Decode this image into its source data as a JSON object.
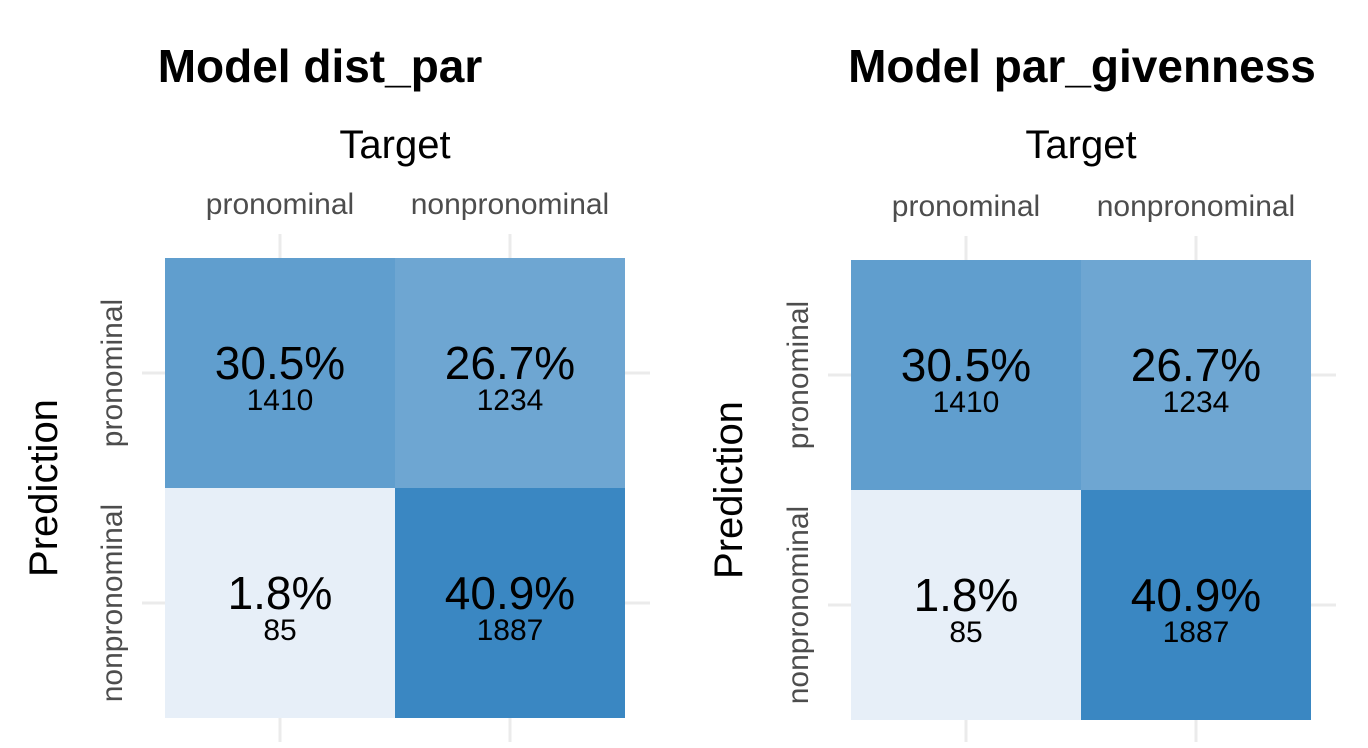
{
  "colors": {
    "background": "#ffffff",
    "grid": "#ebebeb",
    "fill_low": "#f0f4fb",
    "fill_high": "#3a87c2"
  },
  "chart_data": [
    {
      "type": "heatmap",
      "title": "Model dist_par",
      "xlabel": "Target",
      "ylabel": "Prediction",
      "x_categories": [
        "pronominal",
        "nonpronominal"
      ],
      "y_categories": [
        "pronominal",
        "nonpronominal"
      ],
      "cells": [
        {
          "target": "pronominal",
          "prediction": "pronominal",
          "percent": "30.5%",
          "count": "1410",
          "value": 1410
        },
        {
          "target": "nonpronominal",
          "prediction": "pronominal",
          "percent": "26.7%",
          "count": "1234",
          "value": 1234
        },
        {
          "target": "pronominal",
          "prediction": "nonpronominal",
          "percent": "1.8%",
          "count": "85",
          "value": 85
        },
        {
          "target": "nonpronominal",
          "prediction": "nonpronominal",
          "percent": "40.9%",
          "count": "1887",
          "value": 1887
        }
      ]
    },
    {
      "type": "heatmap",
      "title": "Model par_givenness",
      "xlabel": "Target",
      "ylabel": "Prediction",
      "x_categories": [
        "pronominal",
        "nonpronominal"
      ],
      "y_categories": [
        "pronominal",
        "nonpronominal"
      ],
      "cells": [
        {
          "target": "pronominal",
          "prediction": "pronominal",
          "percent": "30.5%",
          "count": "1410",
          "value": 1410
        },
        {
          "target": "nonpronominal",
          "prediction": "pronominal",
          "percent": "26.7%",
          "count": "1234",
          "value": 1234
        },
        {
          "target": "pronominal",
          "prediction": "nonpronominal",
          "percent": "1.8%",
          "count": "85",
          "value": 85
        },
        {
          "target": "nonpronominal",
          "prediction": "nonpronominal",
          "percent": "40.9%",
          "count": "1887",
          "value": 1887
        }
      ]
    }
  ]
}
